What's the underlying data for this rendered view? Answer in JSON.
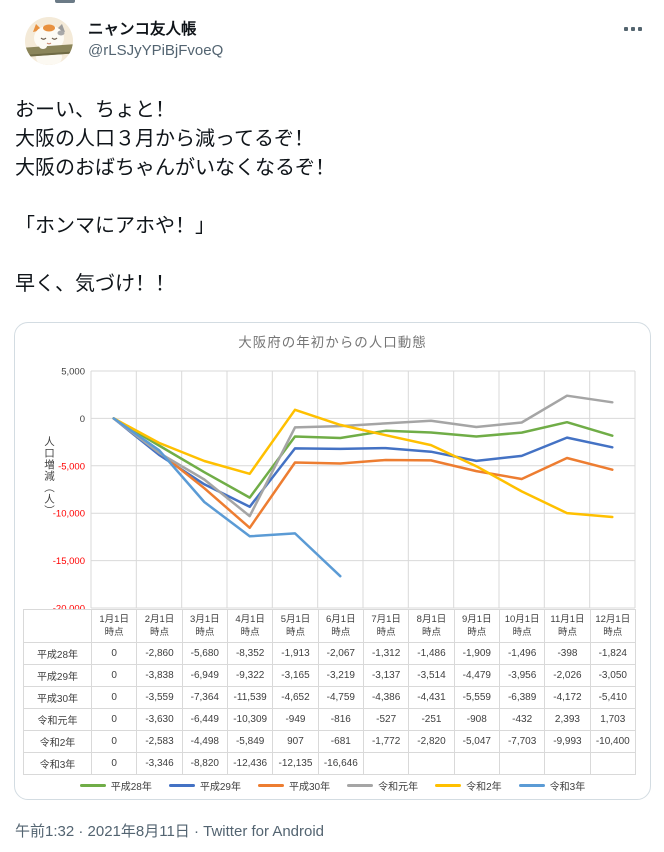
{
  "header": {
    "display_name": "ニャンコ友人帳",
    "handle": "@rLSJyYPiBjFvoeQ",
    "icons": {
      "more": "more-horizontal-icon",
      "avatar": "cat-character-avatar"
    }
  },
  "tweet": {
    "text": "おーい、ちょと！\n大阪の人口３月から減ってるぞ！\n大阪のおばちゃんがいなくなるぞ！\n\n「ホンマにアホや！」\n\n早く、気づけ！！"
  },
  "chart_data": {
    "type": "line",
    "title": "大阪府の年初からの人口動態",
    "xlabel": "",
    "ylabel": "人口増減（人）",
    "categories": [
      "1月1日",
      "2月1日",
      "3月1日",
      "4月1日",
      "5月1日",
      "6月1日",
      "7月1日",
      "8月1日",
      "9月1日",
      "10月1日",
      "11月1日",
      "12月1日"
    ],
    "category_suffix": "時点",
    "ylim": [
      -20000,
      5000
    ],
    "ytick_step": 5000,
    "grid": true,
    "legend_position": "bottom",
    "series": [
      {
        "name": "平成28年",
        "color": "#70AD47",
        "values": [
          0,
          -2860,
          -5680,
          -8352,
          -1913,
          -2067,
          -1312,
          -1486,
          -1909,
          -1496,
          -398,
          -1824
        ]
      },
      {
        "name": "平成29年",
        "color": "#4472C4",
        "values": [
          0,
          -3838,
          -6949,
          -9322,
          -3165,
          -3219,
          -3137,
          -3514,
          -4479,
          -3956,
          -2026,
          -3050
        ]
      },
      {
        "name": "平成30年",
        "color": "#ED7D31",
        "values": [
          0,
          -3559,
          -7364,
          -11539,
          -4652,
          -4759,
          -4386,
          -4431,
          -5559,
          -6389,
          -4172,
          -5410
        ]
      },
      {
        "name": "令和元年",
        "color": "#A5A5A5",
        "values": [
          0,
          -3630,
          -6449,
          -10309,
          -949,
          -816,
          -527,
          -251,
          -908,
          -432,
          2393,
          1703
        ]
      },
      {
        "name": "令和2年",
        "color": "#FFC000",
        "values": [
          0,
          -2583,
          -4498,
          -5849,
          907,
          -681,
          -1772,
          -2820,
          -5047,
          -7703,
          -9993,
          -10400
        ]
      },
      {
        "name": "令和3年",
        "color": "#5B9BD5",
        "values": [
          0,
          -3346,
          -8820,
          -12436,
          -12135,
          -16646
        ]
      }
    ],
    "colors": {
      "grid": "#D9D9D9",
      "tick_positive": "#404040",
      "tick_negative": "#FF0000",
      "title": "#767676",
      "table_border": "#D9D9D9",
      "table_text": "#404040"
    }
  },
  "footer": {
    "text": "午前1:32 · 2021年8月11日 · Twitter for Android"
  }
}
